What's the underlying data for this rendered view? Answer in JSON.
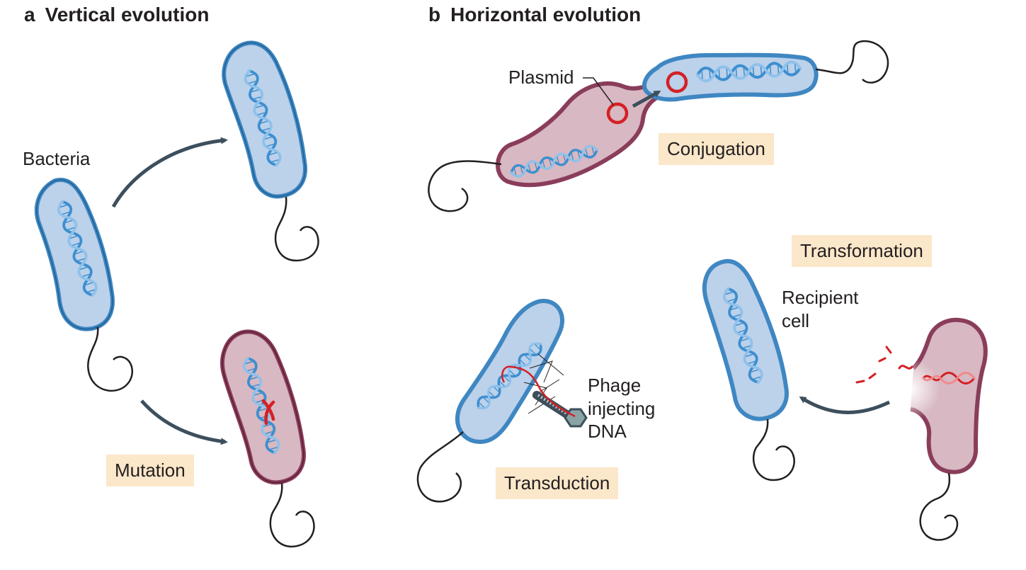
{
  "panels": {
    "a": {
      "letter": "a",
      "title": "Vertical evolution"
    },
    "b": {
      "letter": "b",
      "title": "Horizontal evolution"
    }
  },
  "labels": {
    "bacteria": "Bacteria",
    "plasmid": "Plasmid",
    "recipient_line1": "Recipient",
    "recipient_line2": "cell",
    "phage_line1": "Phage",
    "phage_line2": "injecting",
    "phage_line3": "DNA"
  },
  "processes": {
    "mutation": "Mutation",
    "conjugation": "Conjugation",
    "transformation": "Transformation",
    "transduction": "Transduction"
  },
  "colors": {
    "blue_cell_fill": "#bcd1ea",
    "blue_cell_stroke": "#3f87c2",
    "red_cell_fill": "#d8b8c2",
    "red_cell_stroke": "#8a3d5b",
    "dna_blue": "#3c8fd0",
    "dna_red": "#d42026",
    "arrow": "#3d4f5c",
    "tag_background": "#fbe7c9"
  }
}
